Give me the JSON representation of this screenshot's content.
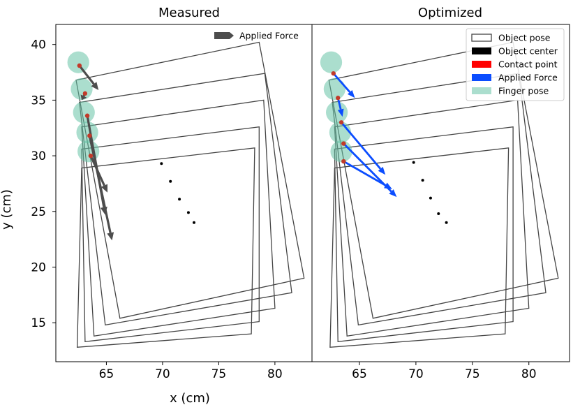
{
  "figure": {
    "ylabel": "y (cm)",
    "xlabel": "x (cm)"
  },
  "chart_data": [
    {
      "type": "scatter",
      "title": "Measured",
      "xlabel": "x (cm)",
      "ylabel": "y (cm)",
      "xlim": [
        60.5,
        83.3
      ],
      "ylim": [
        11.5,
        41.8
      ],
      "xticks": [
        65,
        70,
        75,
        80
      ],
      "yticks": [
        15,
        20,
        25,
        30,
        35,
        40
      ],
      "legend": {
        "placement": "top-right",
        "entries": [
          {
            "label": "Applied Force",
            "kind": "arrow",
            "color": "#4d4d4d"
          }
        ]
      },
      "object_poses": [
        [
          [
            62.3,
            36.8
          ],
          [
            78.6,
            40.2
          ],
          [
            82.6,
            19.0
          ],
          [
            66.2,
            15.4
          ]
        ],
        [
          [
            62.6,
            34.8
          ],
          [
            79.1,
            37.4
          ],
          [
            81.5,
            17.7
          ],
          [
            64.9,
            14.8
          ]
        ],
        [
          [
            62.8,
            32.6
          ],
          [
            79.0,
            35.0
          ],
          [
            80.0,
            16.3
          ],
          [
            63.9,
            13.8
          ]
        ],
        [
          [
            62.8,
            30.6
          ],
          [
            78.6,
            32.6
          ],
          [
            78.6,
            15.1
          ],
          [
            63.1,
            13.3
          ]
        ],
        [
          [
            62.8,
            28.9
          ],
          [
            78.2,
            30.7
          ],
          [
            77.9,
            14.0
          ],
          [
            62.4,
            12.8
          ]
        ]
      ],
      "object_centers": [
        [
          69.9,
          29.3
        ],
        [
          70.7,
          27.7
        ],
        [
          71.5,
          26.1
        ],
        [
          72.3,
          24.9
        ],
        [
          72.8,
          24.0
        ]
      ],
      "contact_points": [
        [
          62.6,
          38.1
        ],
        [
          63.1,
          35.6
        ],
        [
          63.3,
          33.6
        ],
        [
          63.5,
          31.8
        ],
        [
          63.6,
          30.0
        ]
      ],
      "finger_poses": [
        [
          62.5,
          38.4
        ],
        [
          62.8,
          36.0
        ],
        [
          63.0,
          33.9
        ],
        [
          63.3,
          32.1
        ],
        [
          63.4,
          30.4
        ]
      ],
      "finger_color": "#66c2a5",
      "pose_color": "#444444",
      "forces": [
        {
          "from": [
            62.6,
            38.1
          ],
          "to": [
            64.3,
            35.9
          ]
        },
        {
          "from": [
            63.1,
            35.6
          ],
          "to": [
            62.8,
            35.0
          ]
        },
        {
          "from": [
            63.3,
            33.6
          ],
          "to": [
            64.9,
            24.7
          ]
        },
        {
          "from": [
            63.5,
            31.8
          ],
          "to": [
            65.5,
            22.4
          ]
        },
        {
          "from": [
            63.6,
            30.0
          ],
          "to": [
            65.1,
            26.7
          ]
        }
      ],
      "force_color": "#4d4d4d"
    },
    {
      "type": "scatter",
      "title": "Optimized",
      "xlabel": "x (cm)",
      "ylabel": "",
      "xlim": [
        60.8,
        83.6
      ],
      "ylim": [
        11.5,
        41.8
      ],
      "xticks": [
        65,
        70,
        75,
        80
      ],
      "yticks": [],
      "legend": {
        "placement": "top-right",
        "entries": [
          {
            "label": "Object pose",
            "kind": "outline",
            "color": "#444444"
          },
          {
            "label": "Object center",
            "kind": "patch",
            "color": "#000000"
          },
          {
            "label": "Contact point",
            "kind": "patch",
            "color": "#ff0000"
          },
          {
            "label": "Applied Force",
            "kind": "patch",
            "color": "#0b4dff"
          },
          {
            "label": "Finger pose",
            "kind": "finger",
            "color": "#66c2a5"
          }
        ]
      },
      "object_poses": [
        [
          [
            62.3,
            36.8
          ],
          [
            78.6,
            40.2
          ],
          [
            82.6,
            19.0
          ],
          [
            66.2,
            15.4
          ]
        ],
        [
          [
            62.6,
            34.8
          ],
          [
            79.1,
            37.4
          ],
          [
            81.5,
            17.7
          ],
          [
            64.9,
            14.8
          ]
        ],
        [
          [
            62.8,
            32.6
          ],
          [
            79.0,
            35.0
          ],
          [
            80.0,
            16.3
          ],
          [
            63.9,
            13.8
          ]
        ],
        [
          [
            62.8,
            30.6
          ],
          [
            78.6,
            32.6
          ],
          [
            78.6,
            15.1
          ],
          [
            63.1,
            13.3
          ]
        ],
        [
          [
            62.8,
            28.9
          ],
          [
            78.2,
            30.7
          ],
          [
            77.9,
            14.0
          ],
          [
            62.4,
            12.8
          ]
        ]
      ],
      "object_centers": [
        [
          69.8,
          29.4
        ],
        [
          70.6,
          27.8
        ],
        [
          71.3,
          26.2
        ],
        [
          72.0,
          24.8
        ],
        [
          72.7,
          24.0
        ]
      ],
      "contact_points": [
        [
          62.7,
          37.4
        ],
        [
          63.1,
          35.2
        ],
        [
          63.4,
          33.0
        ],
        [
          63.6,
          31.1
        ],
        [
          63.6,
          29.5
        ]
      ],
      "finger_poses": [
        [
          62.5,
          38.4
        ],
        [
          62.8,
          36.0
        ],
        [
          63.0,
          33.9
        ],
        [
          63.3,
          32.1
        ],
        [
          63.4,
          30.4
        ]
      ],
      "finger_color": "#66c2a5",
      "pose_color": "#444444",
      "forces": [
        {
          "from": [
            62.7,
            37.4
          ],
          "to": [
            64.6,
            35.2
          ]
        },
        {
          "from": [
            63.1,
            35.2
          ],
          "to": [
            63.5,
            33.5
          ]
        },
        {
          "from": [
            63.4,
            33.0
          ],
          "to": [
            67.3,
            28.3
          ]
        },
        {
          "from": [
            63.6,
            31.1
          ],
          "to": [
            68.3,
            26.3
          ]
        },
        {
          "from": [
            63.6,
            29.5
          ],
          "to": [
            67.9,
            27.0
          ]
        }
      ],
      "force_color": "#0b4dff"
    }
  ]
}
